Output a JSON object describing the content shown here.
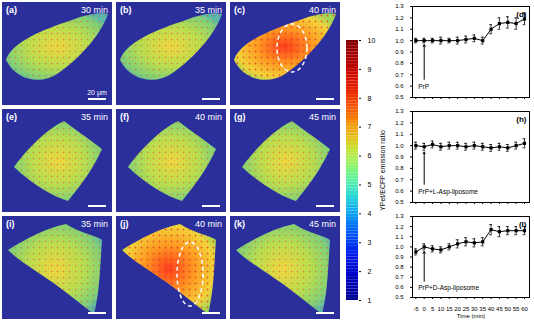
{
  "chart_data": [
    {
      "type": "line",
      "title": "(d)",
      "annotations": [
        {
          "text": "PrP",
          "x": 0
        }
      ],
      "x": [
        -5,
        0,
        5,
        10,
        15,
        20,
        25,
        30,
        35,
        40,
        45,
        50,
        55,
        60
      ],
      "values": [
        1.0,
        1.0,
        1.0,
        1.0,
        1.0,
        1.0,
        1.01,
        1.02,
        1.0,
        1.1,
        1.15,
        1.16,
        1.15,
        1.19
      ],
      "errors": [
        0.02,
        0.02,
        0.02,
        0.03,
        0.02,
        0.03,
        0.03,
        0.03,
        0.03,
        0.04,
        0.05,
        0.05,
        0.05,
        0.05
      ],
      "color": "#000000",
      "marker": "square",
      "xlim": [
        -7,
        63
      ],
      "xticks": [
        -5,
        0,
        5,
        10,
        15,
        20,
        25,
        30,
        35,
        40,
        45,
        50,
        55,
        60
      ],
      "ylim": [
        0.5,
        1.3
      ],
      "yticks": [
        0.5,
        0.6,
        0.7,
        0.8,
        0.9,
        {
          "value": 1,
          "label": "1.0"
        },
        1.1,
        1.2,
        1.3
      ],
      "tick_labels": "y"
    },
    {
      "type": "line",
      "title": "(h)",
      "annotations": [
        {
          "text": "PrP+L-Asp-liposome",
          "x": 0
        }
      ],
      "x": [
        -5,
        0,
        5,
        10,
        15,
        20,
        25,
        30,
        35,
        40,
        45,
        50,
        55,
        60
      ],
      "values": [
        1.0,
        0.99,
        1.01,
        0.99,
        1.0,
        1.0,
        0.99,
        1.0,
        0.99,
        0.98,
        0.99,
        0.98,
        1.0,
        1.02
      ],
      "errors": [
        0.03,
        0.03,
        0.03,
        0.03,
        0.03,
        0.03,
        0.03,
        0.03,
        0.03,
        0.03,
        0.03,
        0.03,
        0.03,
        0.04
      ],
      "color": "#000000",
      "marker": "square",
      "xlim": [
        -7,
        63
      ],
      "xticks": [
        -5,
        0,
        5,
        10,
        15,
        20,
        25,
        30,
        35,
        40,
        45,
        50,
        55,
        60
      ],
      "ylim": [
        0.5,
        1.3
      ],
      "yticks": [
        0.5,
        0.6,
        0.7,
        0.8,
        0.9,
        {
          "value": 1,
          "label": "1.0"
        },
        1.1,
        1.2,
        1.3
      ],
      "tick_labels": "y"
    },
    {
      "type": "line",
      "title": "(l)",
      "x_label": "Time (min)",
      "annotations": [
        {
          "text": "PrP+D-Asp-liposome",
          "x": 0
        }
      ],
      "x": [
        -5,
        0,
        5,
        10,
        15,
        20,
        25,
        30,
        35,
        40,
        45,
        50,
        55,
        60
      ],
      "values": [
        0.95,
        1.0,
        0.98,
        0.97,
        1.0,
        1.03,
        1.05,
        1.04,
        1.05,
        1.17,
        1.15,
        1.16,
        1.16,
        1.16
      ],
      "errors": [
        0.03,
        0.03,
        0.03,
        0.03,
        0.03,
        0.04,
        0.04,
        0.04,
        0.04,
        0.05,
        0.05,
        0.04,
        0.04,
        0.04
      ],
      "color": "#000000",
      "marker": "square",
      "xlim": [
        -7,
        63
      ],
      "xticks": [
        -5,
        0,
        5,
        10,
        15,
        20,
        25,
        30,
        35,
        40,
        45,
        50,
        55,
        60
      ],
      "ylim": [
        0.5,
        1.3
      ],
      "yticks": [
        0.5,
        0.6,
        0.7,
        0.8,
        0.9,
        {
          "value": 1,
          "label": "1.0"
        },
        1.1,
        1.2,
        1.3
      ]
    }
  ],
  "colorbar": {
    "label": "YPet/ECFP emission ratio",
    "range": [
      1,
      10
    ],
    "ticks": [
      1,
      2,
      3,
      4,
      5,
      6,
      7,
      8,
      9,
      10
    ]
  },
  "panels": [
    {
      "label": "(a)",
      "time": "30 min",
      "scale_bar": "20 μm"
    },
    {
      "label": "(b)",
      "time": "35 min"
    },
    {
      "label": "(c)",
      "time": "40 min"
    },
    {
      "label": "(e)",
      "time": "35 min"
    },
    {
      "label": "(f)",
      "time": "40 min"
    },
    {
      "label": "(g)",
      "time": "45 min"
    },
    {
      "label": "(i)",
      "time": "35 min"
    },
    {
      "label": "(j)",
      "time": "40 min"
    },
    {
      "label": "(k)",
      "time": "45 min"
    }
  ]
}
